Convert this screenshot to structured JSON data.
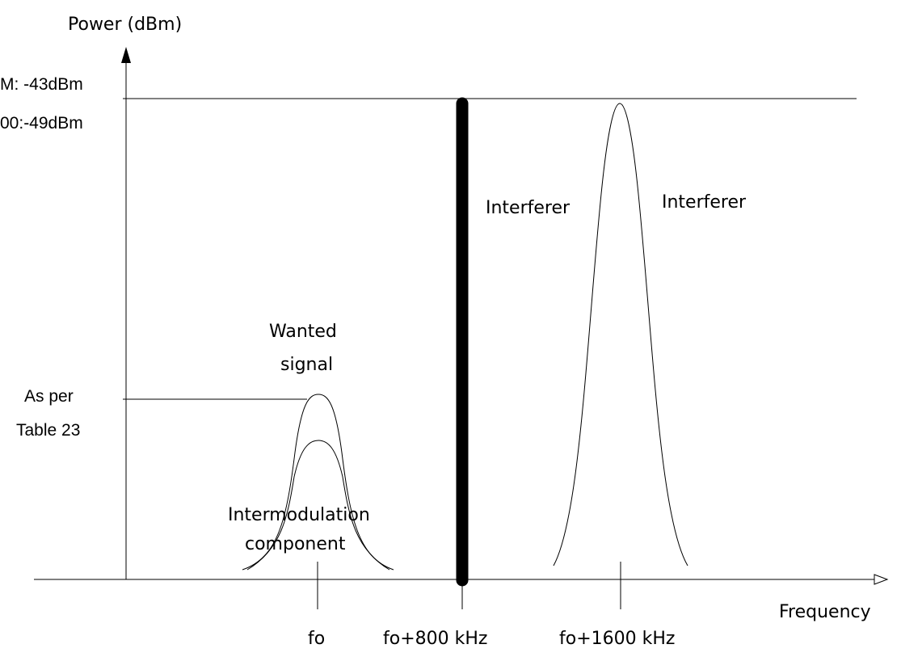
{
  "axes": {
    "y_label": "Power (dBm)",
    "x_label": "Frequency"
  },
  "levels": {
    "top_line1": "M: -43dBm",
    "top_line2": "00:-49dBm",
    "wanted_line1": "As per",
    "wanted_line2": "Table 23"
  },
  "signals": {
    "wanted_line1": "Wanted",
    "wanted_line2": "signal",
    "intermod_line1": "Intermodulation",
    "intermod_line2": "component",
    "interferer_cw": "Interferer",
    "interferer_mod": "Interferer"
  },
  "ticks": {
    "fo": "fo",
    "fo_800": "fo+800 kHz",
    "fo_1600": "fo+1600 kHz"
  },
  "colors": {
    "line": "#000000",
    "background": "#ffffff"
  }
}
